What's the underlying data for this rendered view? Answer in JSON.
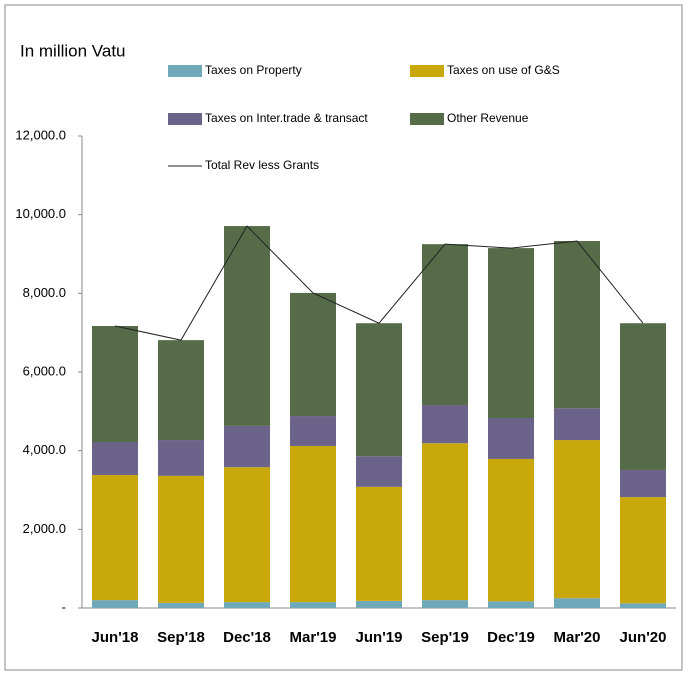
{
  "chart_data": {
    "type": "bar",
    "stacked": true,
    "title": "In million Vatu",
    "categories": [
      "Jun'18",
      "Sep'18",
      "Dec'18",
      "Mar'19",
      "Jun'19",
      "Sep'19",
      "Dec'19",
      "Mar'20",
      "Jun'20"
    ],
    "series": [
      {
        "name": "Taxes on Property",
        "color": "#6fa8b8",
        "values": [
          200,
          130,
          150,
          150,
          180,
          200,
          170,
          250,
          120
        ]
      },
      {
        "name": "Taxes on use of G&S",
        "color": "#c9a80c",
        "values": [
          3180,
          3230,
          3430,
          3970,
          2900,
          3990,
          3620,
          4020,
          2700
        ]
      },
      {
        "name": "Taxes on Inter.trade & transact",
        "color": "#6b6389",
        "values": [
          840,
          910,
          1050,
          760,
          780,
          970,
          1040,
          810,
          690
        ]
      },
      {
        "name": "Other Revenue",
        "color": "#566b48",
        "values": [
          2950,
          2540,
          5080,
          3130,
          3380,
          4090,
          4320,
          4250,
          3730
        ]
      },
      {
        "name": "Total Rev less Grants",
        "color": "#222222",
        "type": "line",
        "values": [
          7170,
          6810,
          9710,
          8010,
          7240,
          9250,
          9150,
          9330,
          7240
        ]
      }
    ],
    "ylim": [
      0,
      12000
    ],
    "yticks": [
      {
        "value": 0,
        "label": "-"
      },
      {
        "value": 2000,
        "label": "2,000.0"
      },
      {
        "value": 4000,
        "label": "4,000.0"
      },
      {
        "value": 6000,
        "label": "6,000.0"
      },
      {
        "value": 8000,
        "label": "8,000.0"
      },
      {
        "value": 10000,
        "label": "10,000.0"
      },
      {
        "value": 12000,
        "label": "12,000.0"
      }
    ]
  }
}
